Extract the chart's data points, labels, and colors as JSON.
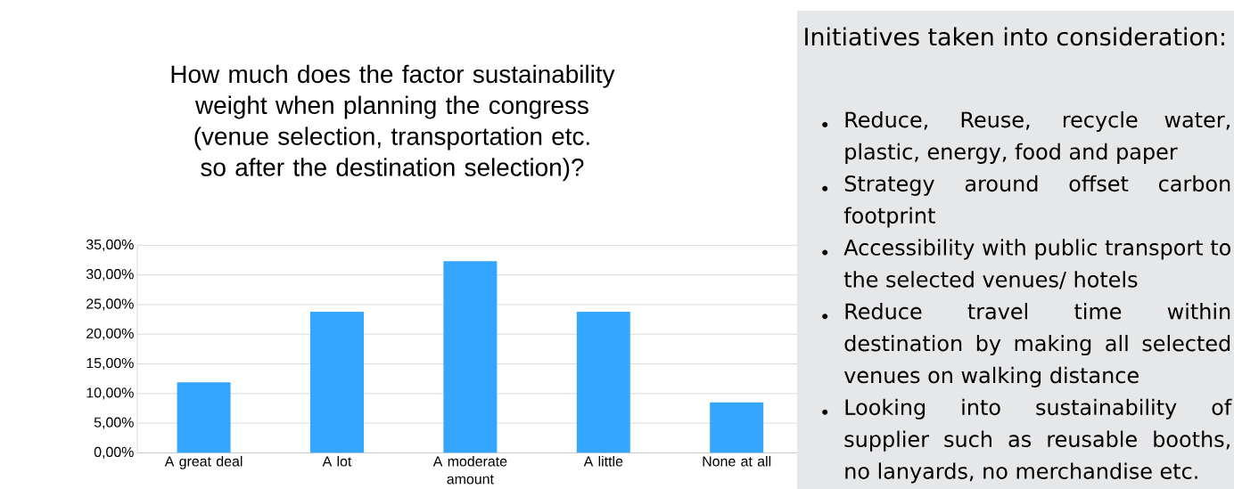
{
  "chart_data": [
    {
      "type": "bar",
      "title": "How much does the factor sustainability weight when planning the congress (venue selection, transportation etc. so after the destination selection)?",
      "categories": [
        "A great deal",
        "A lot",
        "A moderate amount",
        "A little",
        "None at all"
      ],
      "values": [
        11.9,
        23.8,
        32.3,
        23.8,
        8.5
      ],
      "color": "#35a6ff",
      "ylim": [
        0,
        35
      ],
      "yticks": [
        {
          "value": 0,
          "label": "0,00%"
        },
        {
          "value": 5,
          "label": "5,00%"
        },
        {
          "value": 10,
          "label": "10,00%"
        },
        {
          "value": 15,
          "label": "15,00%"
        },
        {
          "value": 20,
          "label": "20,00%"
        },
        {
          "value": 25,
          "label": "25,00%"
        },
        {
          "value": 30,
          "label": "30,00%"
        },
        {
          "value": 35,
          "label": "35,00%"
        }
      ],
      "grid": "y"
    },
    {
      "type": "other",
      "title": "Initiatives taken into consideration:",
      "annotations": [
        "Reduce, Reuse, recycle water, plastic, energy, food and paper",
        "Strategy around offset carbon footprint",
        "Accessibility with public transport to the selected venues/ hotels",
        "Reduce travel time within destination by making all selected venues on walking distance",
        "Looking into sustainability of supplier such as reusable booths, no lanyards, no merchandise etc."
      ]
    }
  ]
}
